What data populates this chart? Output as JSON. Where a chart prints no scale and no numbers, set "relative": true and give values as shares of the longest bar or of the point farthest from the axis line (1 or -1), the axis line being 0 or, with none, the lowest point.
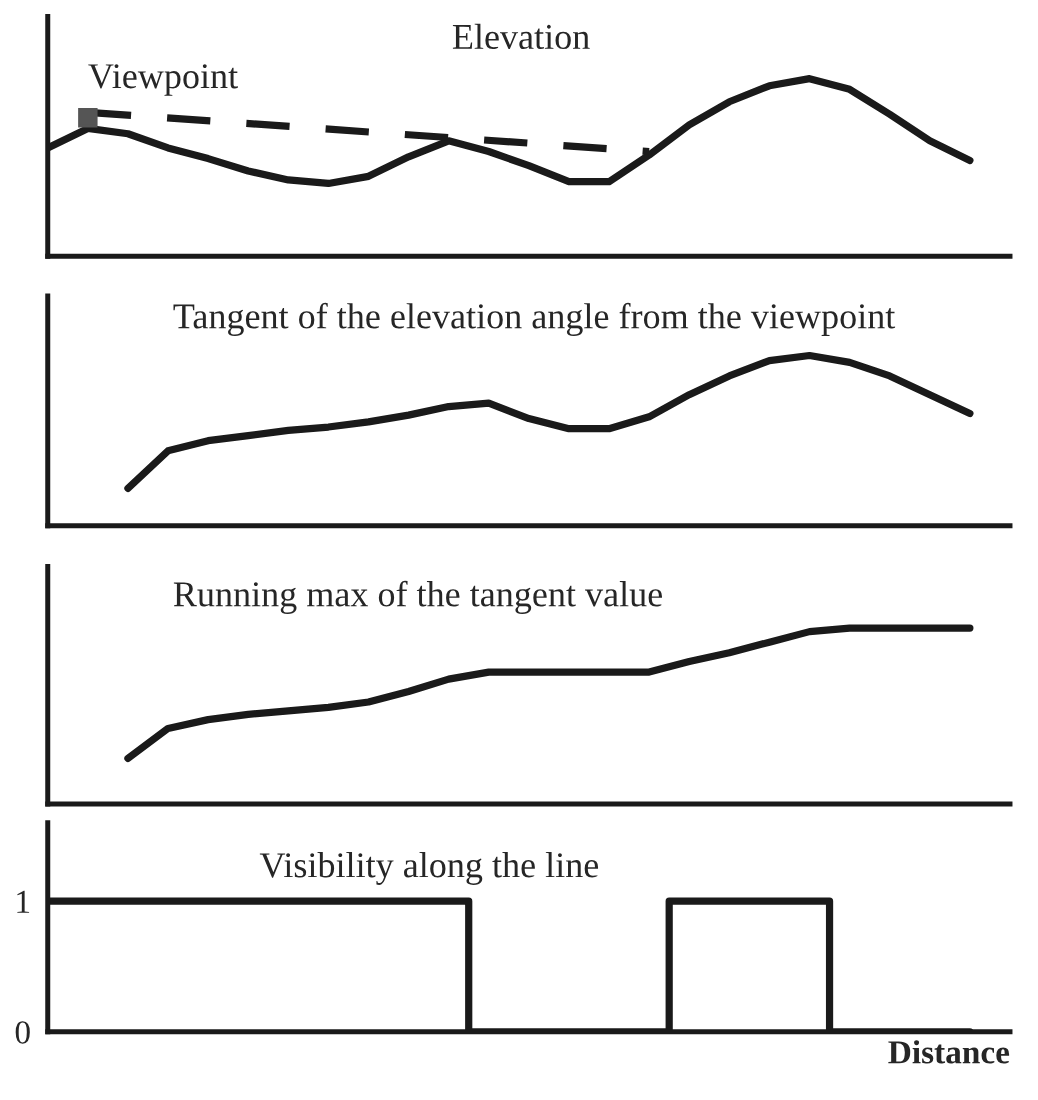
{
  "chart_data": [
    {
      "type": "line",
      "title": "Elevation",
      "relative": true,
      "tick_labels": false,
      "annotations": [
        "Viewpoint"
      ],
      "categories": [
        null,
        null,
        null,
        null,
        null,
        null,
        null,
        null,
        null,
        null,
        null,
        null,
        null,
        null,
        null,
        null,
        null,
        null,
        null,
        null,
        null,
        null,
        null,
        null
      ],
      "series": [
        {
          "color": "#1a1a1a",
          "values": [
            0.61,
            0.72,
            0.69,
            0.61,
            0.55,
            0.48,
            0.43,
            0.41,
            0.45,
            0.56,
            0.65,
            0.59,
            0.51,
            0.42,
            0.42,
            0.57,
            0.74,
            0.87,
            0.96,
            1,
            0.94,
            0.8,
            0.65,
            0.54
          ]
        },
        {
          "color": "#1a1a1a",
          "line_style": "dashed",
          "values": [
            null,
            0.81,
            null,
            null,
            null,
            null,
            null,
            null,
            null,
            null,
            null,
            null,
            null,
            null,
            null,
            0.59,
            null,
            null,
            null,
            null,
            null,
            null,
            null,
            null
          ]
        }
      ]
    },
    {
      "type": "line",
      "title": "Tangent of the elevation angle from the viewpoint",
      "relative": true,
      "tick_labels": false,
      "categories": [
        null,
        null,
        null,
        null,
        null,
        null,
        null,
        null,
        null,
        null,
        null,
        null,
        null,
        null,
        null,
        null,
        null,
        null,
        null,
        null,
        null,
        null,
        null,
        null
      ],
      "series": [
        {
          "color": "#1a1a1a",
          "values": [
            null,
            null,
            0.22,
            0.44,
            0.5,
            0.53,
            0.56,
            0.58,
            0.61,
            0.65,
            0.7,
            0.72,
            0.63,
            0.57,
            0.57,
            0.64,
            0.77,
            0.88,
            0.97,
            1,
            0.96,
            0.88,
            0.77,
            0.66
          ]
        }
      ]
    },
    {
      "type": "line",
      "title": "Running max of the tangent value",
      "relative": true,
      "tick_labels": false,
      "categories": [
        null,
        null,
        null,
        null,
        null,
        null,
        null,
        null,
        null,
        null,
        null,
        null,
        null,
        null,
        null,
        null,
        null,
        null,
        null,
        null,
        null,
        null,
        null,
        null
      ],
      "series": [
        {
          "color": "#1a1a1a",
          "values": [
            null,
            null,
            0.26,
            0.43,
            0.48,
            0.51,
            0.53,
            0.55,
            0.58,
            0.64,
            0.71,
            0.75,
            0.75,
            0.75,
            0.75,
            0.75,
            0.81,
            0.86,
            0.92,
            0.98,
            1,
            1,
            1,
            1
          ]
        }
      ]
    },
    {
      "type": "step",
      "title": "Visibility along the line",
      "xlabel": "Distance",
      "ylim": [
        0,
        1.6
      ],
      "yticks": [
        0,
        1
      ],
      "tick_labels": "y",
      "categories": [
        null,
        null,
        null,
        null,
        null,
        null,
        null,
        null,
        null,
        null,
        null,
        null,
        null,
        null,
        null,
        null,
        null,
        null,
        null,
        null,
        null,
        null,
        null,
        null
      ],
      "series": [
        {
          "color": "#1a1a1a",
          "values": [
            1,
            1,
            1,
            1,
            1,
            1,
            1,
            1,
            1,
            1,
            1,
            0,
            0,
            0,
            0,
            0,
            1,
            1,
            1,
            1,
            0,
            0,
            0,
            0
          ]
        }
      ]
    }
  ]
}
